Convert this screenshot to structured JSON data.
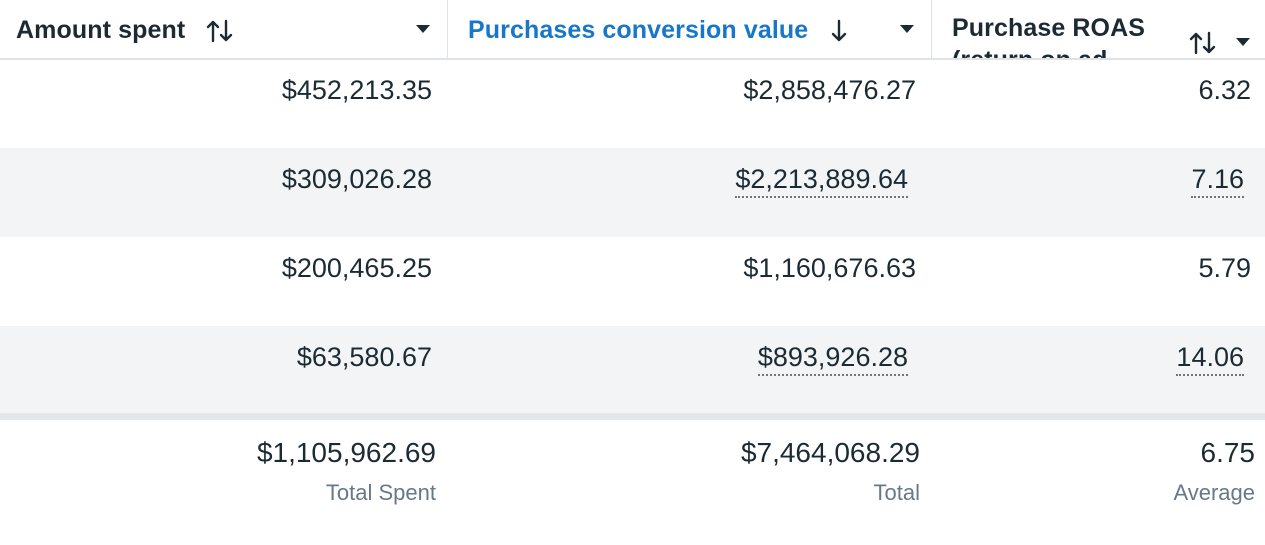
{
  "columns": [
    {
      "label": "Amount spent",
      "sort_icon": "sort-both-icon",
      "menu_icon": "caret-down-icon"
    },
    {
      "label": "Purchases conversion value",
      "sort_icon": "sort-descending-icon",
      "menu_icon": "caret-down-icon",
      "active": true
    },
    {
      "label": "Purchase ROAS (return on ad",
      "sort_icon": "sort-both-icon",
      "menu_icon": "caret-down-icon"
    }
  ],
  "rows": [
    {
      "amount_spent": "$452,213.35",
      "conversion_value": "$2,858,476.27",
      "roas": "6.32"
    },
    {
      "amount_spent": "$309,026.28",
      "conversion_value": "$2,213,889.64",
      "roas": "7.16"
    },
    {
      "amount_spent": "$200,465.25",
      "conversion_value": "$1,160,676.63",
      "roas": "5.79"
    },
    {
      "amount_spent": "$63,580.67",
      "conversion_value": "$893,926.28",
      "roas": "14.06"
    }
  ],
  "totals": {
    "amount_spent": {
      "value": "$1,105,962.69",
      "label": "Total Spent"
    },
    "conversion_value": {
      "value": "$7,464,068.29",
      "label": "Total"
    },
    "roas": {
      "value": "6.75",
      "label": "Average"
    }
  },
  "colors": {
    "active_header": "#1877c9",
    "text": "#1c2b33",
    "muted": "#67788a",
    "stripe": "#f2f4f6"
  }
}
